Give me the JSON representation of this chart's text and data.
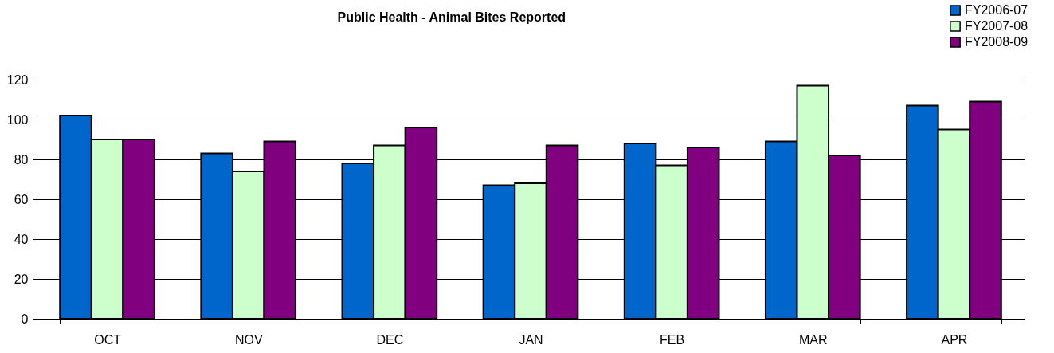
{
  "chart_data": {
    "type": "bar",
    "title": "Public Health - Animal Bites Reported",
    "categories": [
      "OCT",
      "NOV",
      "DEC",
      "JAN",
      "FEB",
      "MAR",
      "APR"
    ],
    "series": [
      {
        "name": "FY2006-07",
        "color": "#0066cc",
        "values": [
          102,
          83,
          78,
          67,
          88,
          89,
          107
        ]
      },
      {
        "name": "FY2007-08",
        "color": "#ccffcc",
        "values": [
          90,
          74,
          87,
          68,
          77,
          117,
          95
        ]
      },
      {
        "name": "FY2008-09",
        "color": "#800080",
        "values": [
          90,
          89,
          96,
          87,
          86,
          82,
          109
        ]
      }
    ],
    "ylim": [
      0,
      120
    ],
    "yticks": [
      0,
      20,
      40,
      60,
      80,
      100,
      120
    ],
    "grid": "y",
    "legend": "top right"
  }
}
